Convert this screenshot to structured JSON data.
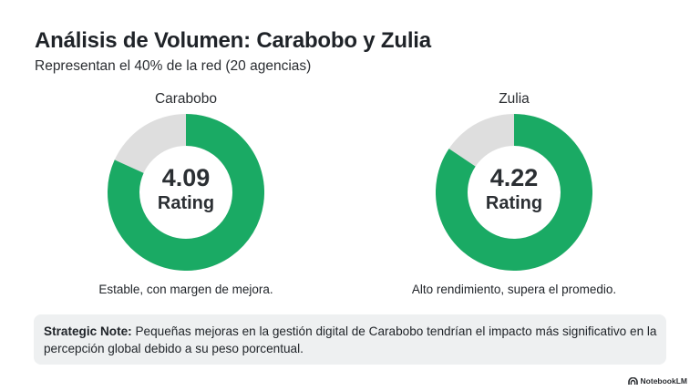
{
  "header": {
    "title": "Análisis de Volumen: Carabobo y Zulia",
    "subtitle": "Representan el 40% de la red (20 agencias)"
  },
  "colors": {
    "filled": "#1aaa64",
    "track": "#dedede"
  },
  "chart_data": [
    {
      "type": "pie",
      "title": "Carabobo",
      "center_value": "4.09",
      "center_label": "Rating",
      "value": 4.09,
      "max": 5,
      "caption": "Estable, con margen de mejora."
    },
    {
      "type": "pie",
      "title": "Zulia",
      "center_value": "4.22",
      "center_label": "Rating",
      "value": 4.22,
      "max": 5,
      "caption": "Alto rendimiento, supera el promedio."
    }
  ],
  "note": {
    "label": "Strategic Note:",
    "text": " Pequeñas mejoras en la gestión digital de Carabobo tendrían el impacto más significativo en la percepción global debido a su peso porcentual."
  },
  "brand": {
    "name": "NotebookLM",
    "icon": "notebooklm-logo-icon"
  }
}
